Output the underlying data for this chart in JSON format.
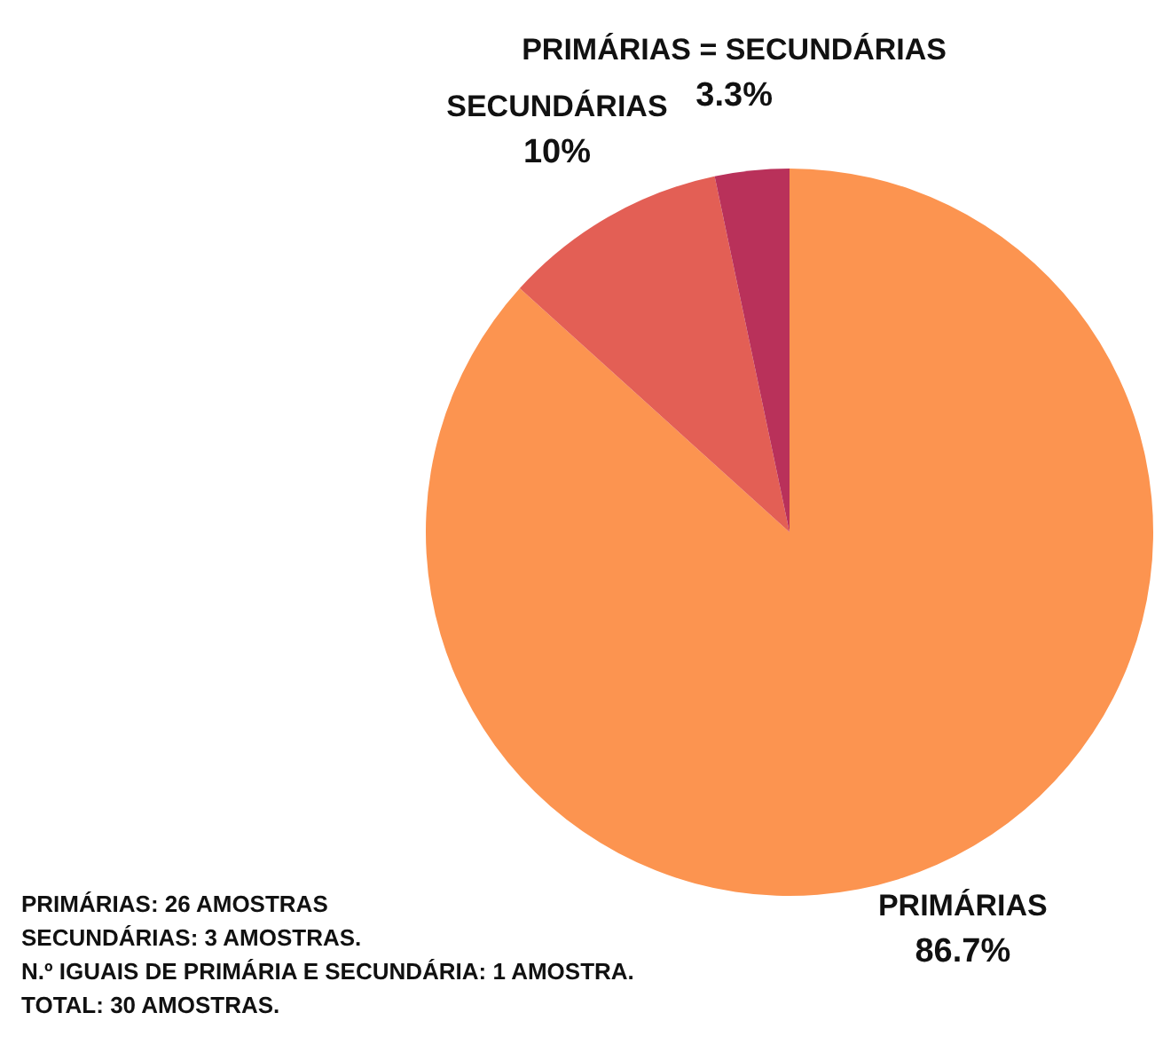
{
  "chart_data": {
    "type": "pie",
    "categories": [
      "PRIMÁRIAS",
      "SECUNDÁRIAS",
      "PRIMÁRIAS = SECUNDÁRIAS"
    ],
    "values": [
      86.7,
      10,
      3.3
    ],
    "colors": [
      "#fc9450",
      "#e35f55",
      "#b9315a"
    ],
    "value_labels": [
      "86.7%",
      "10%",
      "3.3%"
    ],
    "annotations": [
      "PRIMÁRIAS: 26 AMOSTRAS",
      "SECUNDÁRIAS: 3 AMOSTRAS.",
      "N.º IGUAIS DE PRIMÁRIA E SECUNDÁRIA: 1 AMOSTRA.",
      "TOTAL: 30 AMOSTRAS."
    ]
  }
}
